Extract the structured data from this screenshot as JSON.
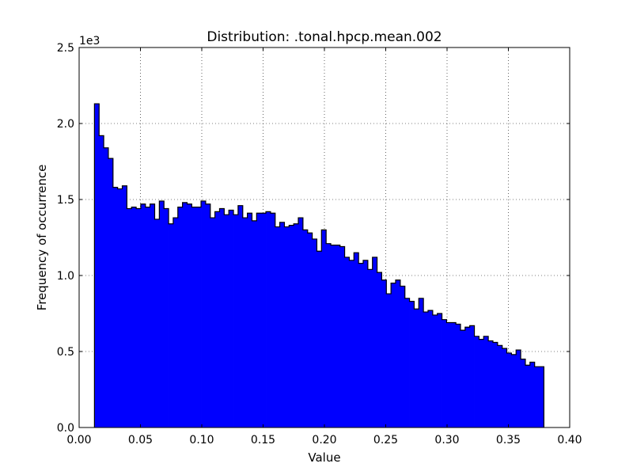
{
  "chart_data": {
    "type": "bar",
    "title": "Distribution: .tonal.hpcp.mean.002",
    "xlabel": "Value",
    "ylabel": "Frequency of occurrence",
    "y_scale_label": "1e3",
    "xlim": [
      0.0,
      0.4
    ],
    "ylim": [
      0,
      2500
    ],
    "x_ticks": [
      "0.00",
      "0.05",
      "0.10",
      "0.15",
      "0.20",
      "0.25",
      "0.30",
      "0.35",
      "0.40"
    ],
    "y_ticks": [
      "0.0",
      "0.5",
      "1.0",
      "1.5",
      "2.0",
      "2.5"
    ],
    "grid": true,
    "bar_color": "#0000ff",
    "edge_color": "#000000",
    "bin_start": 0.0125,
    "bin_width": 0.0037778,
    "values": [
      2130,
      1920,
      1840,
      1770,
      1580,
      1570,
      1590,
      1440,
      1450,
      1440,
      1470,
      1450,
      1470,
      1370,
      1490,
      1440,
      1340,
      1380,
      1450,
      1480,
      1470,
      1450,
      1450,
      1490,
      1470,
      1380,
      1420,
      1440,
      1400,
      1430,
      1400,
      1460,
      1380,
      1410,
      1360,
      1410,
      1410,
      1420,
      1410,
      1320,
      1350,
      1320,
      1330,
      1340,
      1380,
      1300,
      1280,
      1240,
      1160,
      1300,
      1210,
      1200,
      1200,
      1190,
      1120,
      1100,
      1150,
      1080,
      1100,
      1040,
      1120,
      1020,
      970,
      880,
      950,
      970,
      930,
      850,
      830,
      780,
      850,
      760,
      770,
      740,
      750,
      710,
      690,
      690,
      680,
      640,
      660,
      670,
      600,
      580,
      600,
      570,
      560,
      540,
      520,
      490,
      480,
      510,
      450,
      410,
      430,
      400,
      400
    ]
  }
}
